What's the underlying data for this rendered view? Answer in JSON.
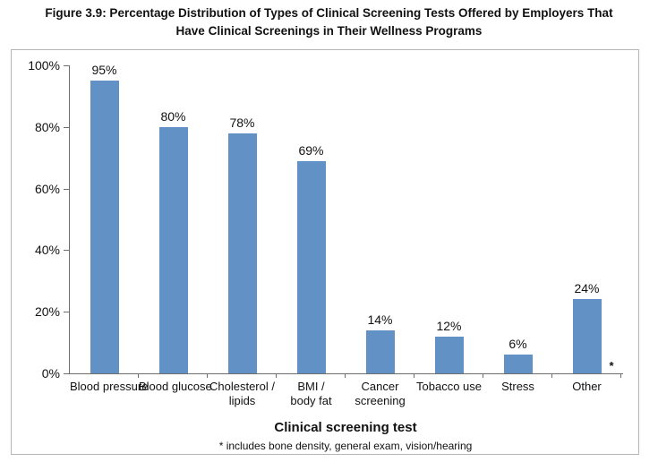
{
  "figure": {
    "title_line1": "Figure 3.9: Percentage Distribution of Types of Clinical Screening Tests Offered by Employers That",
    "title_line2": "Have Clinical Screenings in Their Wellness Programs"
  },
  "chart_data": {
    "type": "bar",
    "title": "Figure 3.9: Percentage Distribution of Types of Clinical Screening Tests Offered by Employers That Have Clinical Screenings in Their Wellness Programs",
    "categories": [
      "Blood pressure",
      "Blood glucose",
      "Cholesterol / lipids",
      "BMI / body fat",
      "Cancer screening",
      "Tobacco use",
      "Stress",
      "Other"
    ],
    "values": [
      95,
      80,
      78,
      69,
      14,
      12,
      6,
      24
    ],
    "value_labels": [
      "95%",
      "80%",
      "78%",
      "69%",
      "14%",
      "12%",
      "6%",
      "24%"
    ],
    "category_label_lines": [
      [
        "Blood pressure"
      ],
      [
        "Blood glucose"
      ],
      [
        "Cholesterol /",
        "lipids"
      ],
      [
        "BMI /",
        "body fat"
      ],
      [
        "Cancer",
        "screening"
      ],
      [
        "Tobacco use"
      ],
      [
        "Stress"
      ],
      [
        "Other"
      ]
    ],
    "xlabel": "Clinical screening test",
    "ylabel": "",
    "ylim": [
      0,
      100
    ],
    "ytick_values": [
      0,
      20,
      40,
      60,
      80,
      100
    ],
    "ytick_labels": [
      "0%",
      "20%",
      "40%",
      "60%",
      "80%",
      "100%"
    ],
    "grid": false,
    "legend": false,
    "bar_color": "#6191C5",
    "axis_color": "#6e6e6e",
    "other_bar_annotation": "*",
    "footnote": "* includes bone density, general exam, vision/hearing"
  }
}
